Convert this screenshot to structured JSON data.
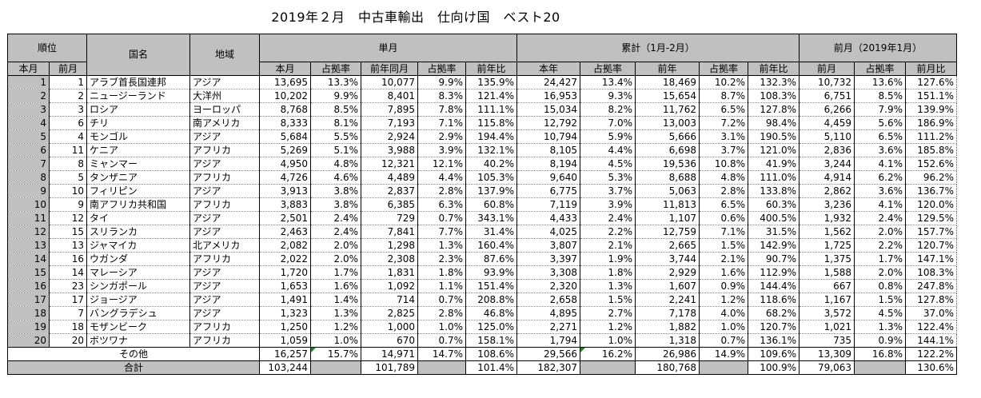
{
  "title": "2019年２月　中古車輸出　仕向け国　ベスト20",
  "headers": {
    "rank": "順位",
    "country": "国名",
    "region": "地域",
    "single_month": "単月",
    "cumulative": "累計（1月-2月）",
    "prev_month": "前月（2019年1月）",
    "rank_current": "本月",
    "rank_prev": "前月",
    "cols": [
      "本月",
      "占拠率",
      "前年同月",
      "占拠率",
      "前年比",
      "本年",
      "占拠率",
      "前年",
      "占拠率",
      "前年比",
      "前月",
      "占拠率",
      "前月比"
    ]
  },
  "rows": [
    {
      "rank": "1",
      "prev_rank": "1",
      "country": "アラブ首長国連邦",
      "region": "アジア",
      "v": [
        "13,695",
        "13.3%",
        "10,077",
        "9.9%",
        "135.9%",
        "24,427",
        "13.4%",
        "18,469",
        "10.2%",
        "132.3%",
        "10,732",
        "13.6%",
        "127.6%"
      ]
    },
    {
      "rank": "2",
      "prev_rank": "2",
      "country": "ニュージーランド",
      "region": "大洋州",
      "v": [
        "10,202",
        "9.9%",
        "8,401",
        "8.3%",
        "121.4%",
        "16,953",
        "9.3%",
        "15,654",
        "8.7%",
        "108.3%",
        "6,751",
        "8.5%",
        "151.1%"
      ]
    },
    {
      "rank": "3",
      "prev_rank": "3",
      "country": "ロシア",
      "region": "ヨーロッパ",
      "v": [
        "8,768",
        "8.5%",
        "7,895",
        "7.8%",
        "111.1%",
        "15,034",
        "8.2%",
        "11,762",
        "6.5%",
        "127.8%",
        "6,266",
        "7.9%",
        "139.9%"
      ]
    },
    {
      "rank": "4",
      "prev_rank": "6",
      "country": "チリ",
      "region": "南アメリカ",
      "v": [
        "8,333",
        "8.1%",
        "7,193",
        "7.1%",
        "115.8%",
        "12,792",
        "7.0%",
        "13,003",
        "7.2%",
        "98.4%",
        "4,459",
        "5.6%",
        "186.9%"
      ]
    },
    {
      "rank": "5",
      "prev_rank": "4",
      "country": "モンゴル",
      "region": "アジア",
      "v": [
        "5,684",
        "5.5%",
        "2,924",
        "2.9%",
        "194.4%",
        "10,794",
        "5.9%",
        "5,666",
        "3.1%",
        "190.5%",
        "5,110",
        "6.5%",
        "111.2%"
      ]
    },
    {
      "rank": "6",
      "prev_rank": "11",
      "country": "ケニア",
      "region": "アフリカ",
      "v": [
        "5,269",
        "5.1%",
        "3,988",
        "3.9%",
        "132.1%",
        "8,105",
        "4.4%",
        "6,698",
        "3.7%",
        "121.0%",
        "2,836",
        "3.6%",
        "185.8%"
      ]
    },
    {
      "rank": "7",
      "prev_rank": "8",
      "country": "ミャンマー",
      "region": "アジア",
      "v": [
        "4,950",
        "4.8%",
        "12,321",
        "12.1%",
        "40.2%",
        "8,194",
        "4.5%",
        "19,536",
        "10.8%",
        "41.9%",
        "3,244",
        "4.1%",
        "152.6%"
      ]
    },
    {
      "rank": "8",
      "prev_rank": "5",
      "country": "タンザニア",
      "region": "アフリカ",
      "v": [
        "4,726",
        "4.6%",
        "4,489",
        "4.4%",
        "105.3%",
        "9,640",
        "5.3%",
        "8,688",
        "4.8%",
        "111.0%",
        "4,914",
        "6.2%",
        "96.2%"
      ]
    },
    {
      "rank": "9",
      "prev_rank": "10",
      "country": "フィリピン",
      "region": "アジア",
      "v": [
        "3,913",
        "3.8%",
        "2,837",
        "2.8%",
        "137.9%",
        "6,775",
        "3.7%",
        "5,063",
        "2.8%",
        "133.8%",
        "2,862",
        "3.6%",
        "136.7%"
      ]
    },
    {
      "rank": "10",
      "prev_rank": "9",
      "country": "南アフリカ共和国",
      "region": "アフリカ",
      "v": [
        "3,883",
        "3.8%",
        "6,385",
        "6.3%",
        "60.8%",
        "7,119",
        "3.9%",
        "11,813",
        "6.5%",
        "60.3%",
        "3,236",
        "4.1%",
        "120.0%"
      ]
    },
    {
      "rank": "11",
      "prev_rank": "12",
      "country": "タイ",
      "region": "アジア",
      "v": [
        "2,501",
        "2.4%",
        "729",
        "0.7%",
        "343.1%",
        "4,433",
        "2.4%",
        "1,107",
        "0.6%",
        "400.5%",
        "1,932",
        "2.4%",
        "129.5%"
      ]
    },
    {
      "rank": "12",
      "prev_rank": "15",
      "country": "スリランカ",
      "region": "アジア",
      "v": [
        "2,463",
        "2.4%",
        "7,841",
        "7.7%",
        "31.4%",
        "4,025",
        "2.2%",
        "12,759",
        "7.1%",
        "31.5%",
        "1,562",
        "2.0%",
        "157.7%"
      ]
    },
    {
      "rank": "13",
      "prev_rank": "13",
      "country": "ジャマイカ",
      "region": "北アメリカ",
      "v": [
        "2,082",
        "2.0%",
        "1,298",
        "1.3%",
        "160.4%",
        "3,807",
        "2.1%",
        "2,665",
        "1.5%",
        "142.9%",
        "1,725",
        "2.2%",
        "120.7%"
      ]
    },
    {
      "rank": "14",
      "prev_rank": "16",
      "country": "ウガンダ",
      "region": "アフリカ",
      "v": [
        "2,022",
        "2.0%",
        "2,308",
        "2.3%",
        "87.6%",
        "3,397",
        "1.9%",
        "3,744",
        "2.1%",
        "90.7%",
        "1,375",
        "1.7%",
        "147.1%"
      ]
    },
    {
      "rank": "15",
      "prev_rank": "14",
      "country": "マレーシア",
      "region": "アジア",
      "v": [
        "1,720",
        "1.7%",
        "1,831",
        "1.8%",
        "93.9%",
        "3,308",
        "1.8%",
        "2,929",
        "1.6%",
        "112.9%",
        "1,588",
        "2.0%",
        "108.3%"
      ]
    },
    {
      "rank": "16",
      "prev_rank": "23",
      "country": "シンガポール",
      "region": "アジア",
      "v": [
        "1,653",
        "1.6%",
        "1,092",
        "1.1%",
        "151.4%",
        "2,320",
        "1.3%",
        "1,607",
        "0.9%",
        "144.4%",
        "667",
        "0.8%",
        "247.8%"
      ]
    },
    {
      "rank": "17",
      "prev_rank": "17",
      "country": "ジョージア",
      "region": "アジア",
      "v": [
        "1,491",
        "1.4%",
        "714",
        "0.7%",
        "208.8%",
        "2,658",
        "1.5%",
        "2,241",
        "1.2%",
        "118.6%",
        "1,167",
        "1.5%",
        "127.8%"
      ]
    },
    {
      "rank": "18",
      "prev_rank": "7",
      "country": "バングラデシュ",
      "region": "アジア",
      "v": [
        "1,323",
        "1.3%",
        "2,825",
        "2.8%",
        "46.8%",
        "4,895",
        "2.7%",
        "7,178",
        "4.0%",
        "68.2%",
        "3,572",
        "4.5%",
        "37.0%"
      ]
    },
    {
      "rank": "19",
      "prev_rank": "18",
      "country": "モザンビーク",
      "region": "アフリカ",
      "v": [
        "1,250",
        "1.2%",
        "1,000",
        "1.0%",
        "125.0%",
        "2,271",
        "1.2%",
        "1,882",
        "1.0%",
        "120.7%",
        "1,021",
        "1.3%",
        "122.4%"
      ]
    },
    {
      "rank": "20",
      "prev_rank": "20",
      "country": "ボツワナ",
      "region": "アフリカ",
      "v": [
        "1,059",
        "1.0%",
        "670",
        "0.7%",
        "158.1%",
        "1,794",
        "1.0%",
        "1,318",
        "0.7%",
        "136.1%",
        "735",
        "0.9%",
        "144.1%"
      ]
    }
  ],
  "other": {
    "label": "その他",
    "v": [
      "16,257",
      "15.7%",
      "14,971",
      "14.7%",
      "108.6%",
      "29,566",
      "16.2%",
      "26,986",
      "14.9%",
      "109.6%",
      "13,309",
      "16.8%",
      "122.2%"
    ]
  },
  "total": {
    "label": "合計",
    "v": [
      "103,244",
      "",
      "101,789",
      "",
      "101.4%",
      "182,307",
      "",
      "180,768",
      "",
      "100.9%",
      "79,063",
      "",
      "130.6%"
    ]
  }
}
